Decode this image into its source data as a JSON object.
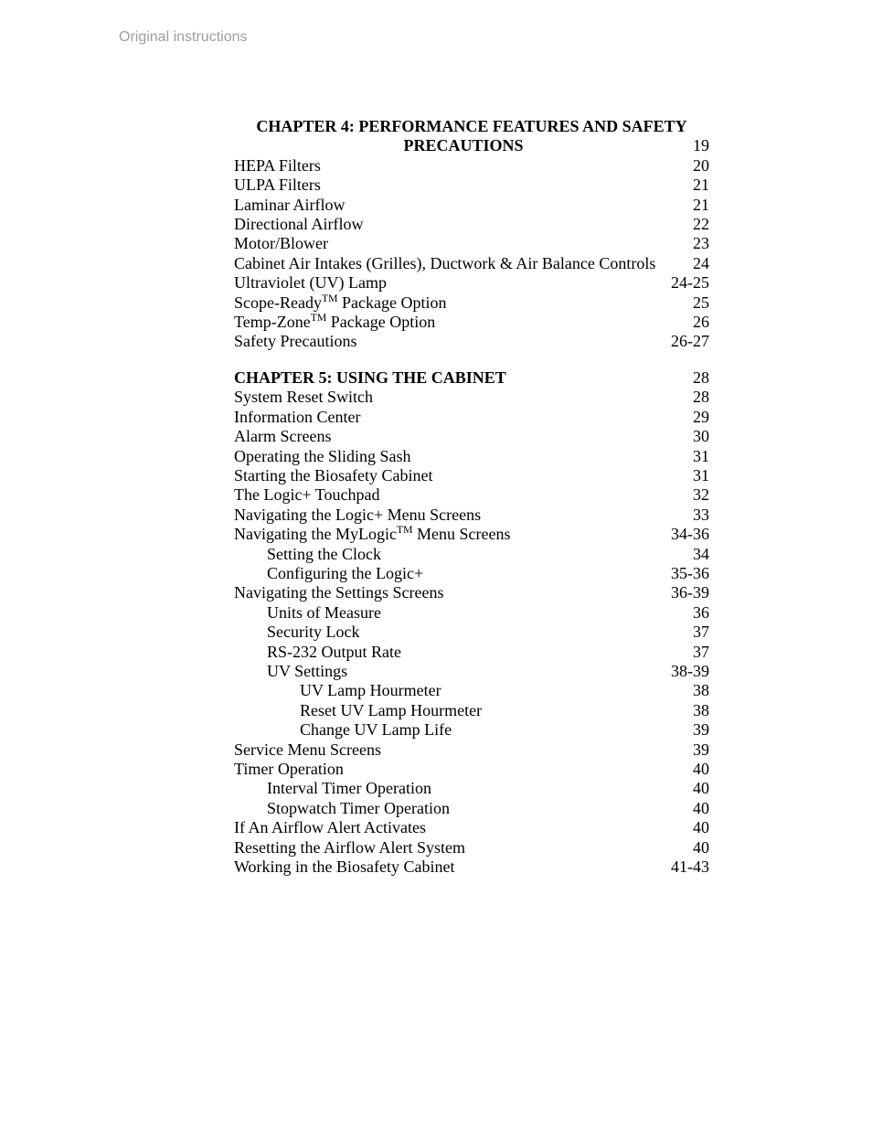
{
  "header_text": "Original instructions",
  "fonts": {
    "body_family": "Times New Roman",
    "header_family": "Arial",
    "header_color": "#9e9e9e",
    "body_color": "#000000",
    "body_size_pt": 14,
    "header_size_pt": 12
  },
  "page_bg": "#ffffff",
  "toc": {
    "chapters": [
      {
        "title_lines": [
          "CHAPTER 4: PERFORMANCE FEATURES AND SAFETY",
          "PRECAUTIONS"
        ],
        "title_page": "19",
        "title_align": "center",
        "entries": [
          {
            "label": "HEPA Filters",
            "page": "20",
            "indent": 0
          },
          {
            "label": "ULPA Filters",
            "page": "21",
            "indent": 0
          },
          {
            "label": "Laminar Airflow",
            "page": "21",
            "indent": 0
          },
          {
            "label": "Directional Airflow",
            "page": "22",
            "indent": 0
          },
          {
            "label": "Motor/Blower",
            "page": "23",
            "indent": 0
          },
          {
            "label": "Cabinet Air Intakes (Grilles), Ductwork & Air Balance Controls",
            "page": "24",
            "indent": 0
          },
          {
            "label": "Ultraviolet (UV) Lamp",
            "page": "24-25",
            "indent": 0
          },
          {
            "label_html": "Scope-Ready<span class=\"sup\">TM</span> Package Option",
            "page": "25",
            "indent": 0
          },
          {
            "label_html": "Temp-Zone<span class=\"sup\">TM</span> Package Option",
            "page": "26",
            "indent": 0
          },
          {
            "label": "Safety Precautions",
            "page": "26-27",
            "indent": 0
          }
        ]
      },
      {
        "title_lines": [
          "CHAPTER 5: USING THE CABINET"
        ],
        "title_page": "28",
        "title_align": "left",
        "entries": [
          {
            "label": "System Reset Switch",
            "page": "28",
            "indent": 0
          },
          {
            "label": "Information Center",
            "page": "29",
            "indent": 0
          },
          {
            "label": "Alarm Screens",
            "page": "30",
            "indent": 0
          },
          {
            "label": "Operating the Sliding Sash",
            "page": "31",
            "indent": 0
          },
          {
            "label": "Starting the Biosafety Cabinet",
            "page": "31",
            "indent": 0
          },
          {
            "label": "The Logic+ Touchpad",
            "page": "32",
            "indent": 0
          },
          {
            "label": "Navigating the Logic+ Menu Screens",
            "page": "33",
            "indent": 0
          },
          {
            "label_html": "Navigating the MyLogic<span class=\"sup\">TM</span> Menu Screens",
            "page": "34-36",
            "indent": 0
          },
          {
            "label": "Setting the Clock",
            "page": "34",
            "indent": 1
          },
          {
            "label": "Configuring the Logic+",
            "page": "35-36",
            "indent": 1
          },
          {
            "label": "Navigating the Settings Screens",
            "page": "36-39",
            "indent": 0
          },
          {
            "label": "Units of Measure",
            "page": "36",
            "indent": 1
          },
          {
            "label": "Security Lock",
            "page": "37",
            "indent": 1
          },
          {
            "label": "RS-232 Output Rate",
            "page": "37",
            "indent": 1
          },
          {
            "label": "UV Settings",
            "page": "38-39",
            "indent": 1
          },
          {
            "label": "UV Lamp Hourmeter",
            "page": "38",
            "indent": 2
          },
          {
            "label": "Reset UV Lamp Hourmeter",
            "page": "38",
            "indent": 2
          },
          {
            "label": "Change UV Lamp Life",
            "page": "39",
            "indent": 2
          },
          {
            "label": "Service Menu Screens",
            "page": "39",
            "indent": 0
          },
          {
            "label": "Timer Operation",
            "page": "40",
            "indent": 0
          },
          {
            "label": "Interval Timer Operation",
            "page": "40",
            "indent": 1
          },
          {
            "label": "Stopwatch Timer Operation",
            "page": "40",
            "indent": 1
          },
          {
            "label": "If An Airflow Alert Activates",
            "page": "40",
            "indent": 0
          },
          {
            "label": "Resetting the Airflow Alert System",
            "page": "40",
            "indent": 0
          },
          {
            "label": "Working in the Biosafety Cabinet",
            "page": "41-43",
            "indent": 0
          }
        ]
      }
    ]
  }
}
